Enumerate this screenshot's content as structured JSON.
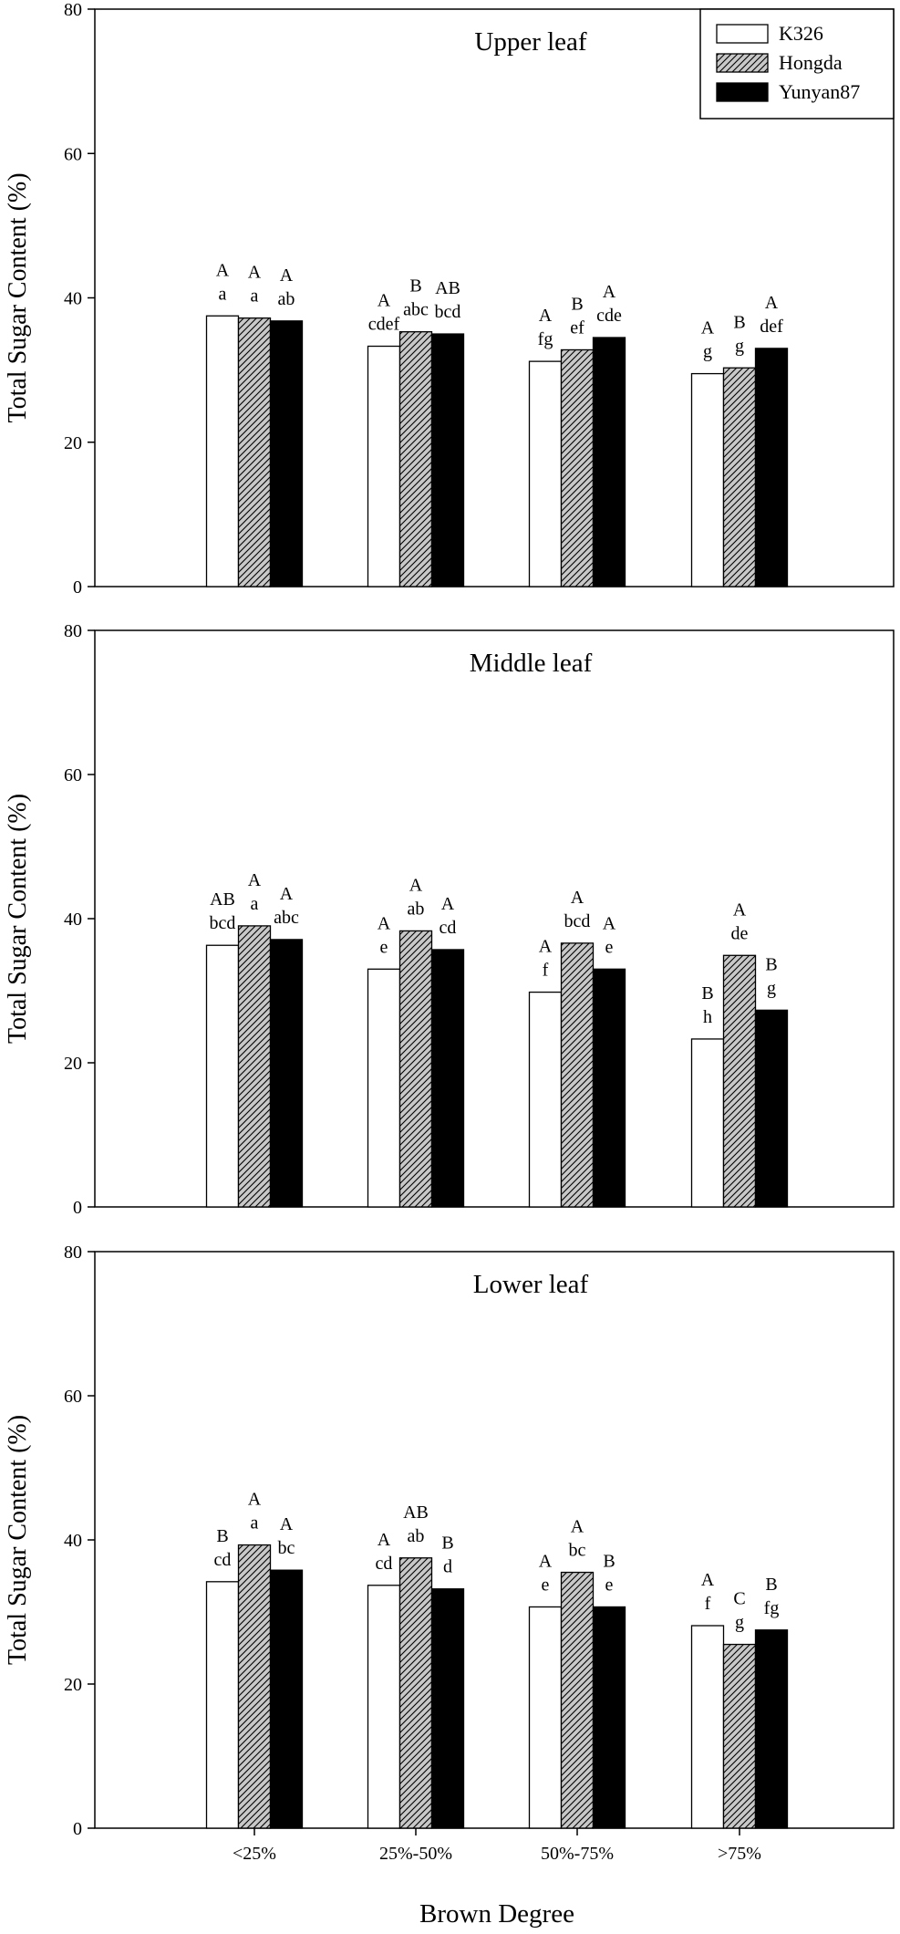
{
  "chart_data": [
    {
      "type": "bar",
      "title": "Upper leaf",
      "xlabel": "",
      "ylabel": "Total Sugar Content (%)",
      "ylim": [
        0,
        80
      ],
      "yticks": [
        "0",
        "20",
        "40",
        "60",
        "80"
      ],
      "categories": [
        "",
        "",
        "",
        ""
      ],
      "legend_position": "top-right",
      "series": [
        {
          "name": "K326",
          "values": [
            37.5,
            33.3,
            31.2,
            29.5
          ],
          "labels": [
            [
              "A",
              "a"
            ],
            [
              "A",
              "cdef"
            ],
            [
              "A",
              "fg"
            ],
            [
              "A",
              "g"
            ]
          ]
        },
        {
          "name": "Hongda",
          "values": [
            37.2,
            35.3,
            32.8,
            30.3
          ],
          "labels": [
            [
              "A",
              "a"
            ],
            [
              "B",
              "abc"
            ],
            [
              "B",
              "ef"
            ],
            [
              "B",
              "g"
            ]
          ]
        },
        {
          "name": "Yunyan87",
          "values": [
            36.8,
            35.0,
            34.5,
            33.0
          ],
          "labels": [
            [
              "A",
              "ab"
            ],
            [
              "AB",
              "bcd"
            ],
            [
              "A",
              "cde"
            ],
            [
              "A",
              "def"
            ]
          ]
        }
      ]
    },
    {
      "type": "bar",
      "title": "Middle leaf",
      "xlabel": "",
      "ylabel": "Total Sugar Content (%)",
      "ylim": [
        0,
        80
      ],
      "yticks": [
        "0",
        "20",
        "40",
        "60",
        "80"
      ],
      "categories": [
        "",
        "",
        "",
        ""
      ],
      "series": [
        {
          "name": "K326",
          "values": [
            36.3,
            33.0,
            29.8,
            23.3
          ],
          "labels": [
            [
              "AB",
              "bcd"
            ],
            [
              "A",
              "e"
            ],
            [
              "A",
              "f"
            ],
            [
              "B",
              "h"
            ]
          ]
        },
        {
          "name": "Hongda",
          "values": [
            39.0,
            38.3,
            36.6,
            34.9
          ],
          "labels": [
            [
              "A",
              "a"
            ],
            [
              "A",
              "ab"
            ],
            [
              "A",
              "bcd"
            ],
            [
              "A",
              "de"
            ]
          ]
        },
        {
          "name": "Yunyan87",
          "values": [
            37.1,
            35.7,
            33.0,
            27.3
          ],
          "labels": [
            [
              "A",
              "abc"
            ],
            [
              "A",
              "cd"
            ],
            [
              "A",
              "e"
            ],
            [
              "B",
              "g"
            ]
          ]
        }
      ]
    },
    {
      "type": "bar",
      "title": "Lower leaf",
      "xlabel": "Brown Degree",
      "ylabel": "Total Sugar Content (%)",
      "ylim": [
        0,
        80
      ],
      "yticks": [
        "0",
        "20",
        "40",
        "60",
        "80"
      ],
      "categories": [
        "<25%",
        "25%-50%",
        "50%-75%",
        ">75%"
      ],
      "series": [
        {
          "name": "K326",
          "values": [
            34.2,
            33.7,
            30.7,
            28.1
          ],
          "labels": [
            [
              "B",
              "cd"
            ],
            [
              "A",
              "cd"
            ],
            [
              "A",
              "e"
            ],
            [
              "A",
              "f"
            ]
          ]
        },
        {
          "name": "Hongda",
          "values": [
            39.3,
            37.5,
            35.5,
            25.5
          ],
          "labels": [
            [
              "A",
              "a"
            ],
            [
              "AB",
              "ab"
            ],
            [
              "A",
              "bc"
            ],
            [
              "C",
              "g"
            ]
          ]
        },
        {
          "name": "Yunyan87",
          "values": [
            35.8,
            33.2,
            30.7,
            27.5
          ],
          "labels": [
            [
              "A",
              "bc"
            ],
            [
              "B",
              "d"
            ],
            [
              "B",
              "e"
            ],
            [
              "B",
              "fg"
            ]
          ]
        }
      ]
    }
  ],
  "colors": {
    "K326": "#ffffff",
    "Hongda": "#c8c8c8",
    "Yunyan87": "#000000"
  }
}
